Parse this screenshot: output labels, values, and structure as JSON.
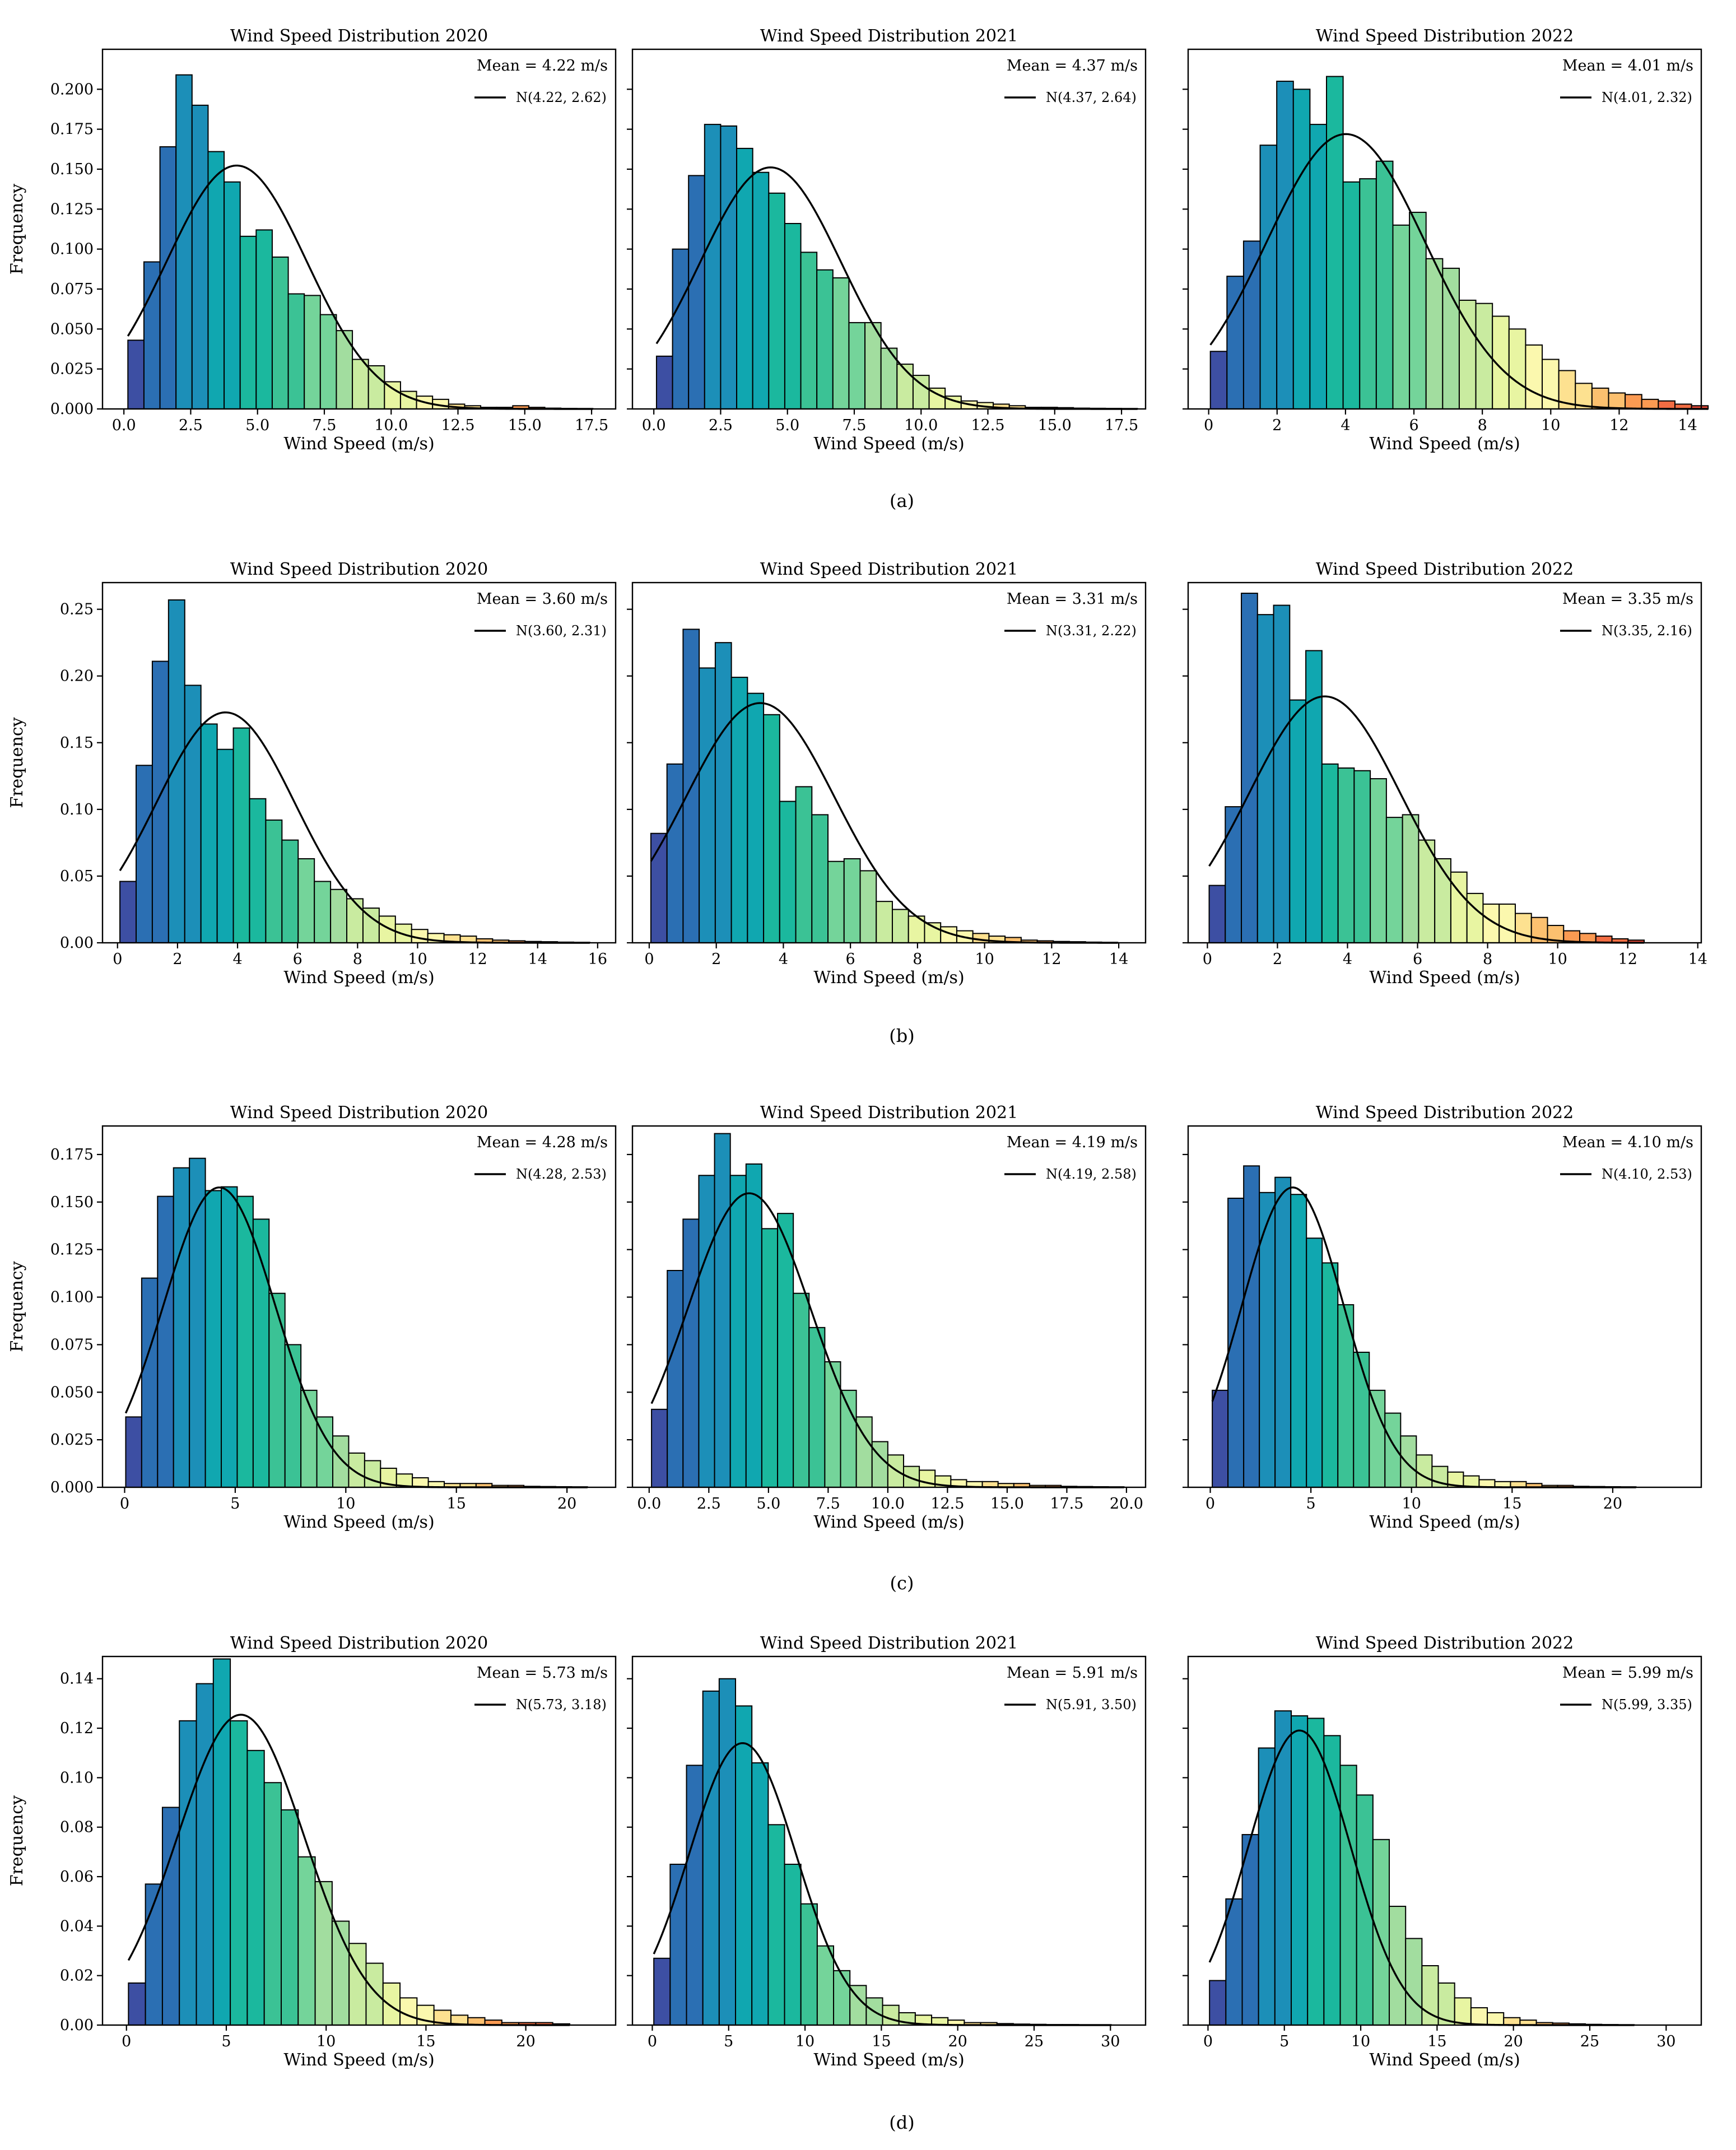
{
  "caption_labels": [
    "(a)",
    "(b)",
    "(c)",
    "(d)"
  ],
  "colors": {
    "colormap": "Spectral_r",
    "palette": [
      "#3d4fa3",
      "#2b6fb3",
      "#1c8fb8",
      "#10a7b0",
      "#1bb89e",
      "#3bc295",
      "#74d49a",
      "#a2dd9f",
      "#c9eba0",
      "#e8f5a2",
      "#fbf8ae",
      "#fde190",
      "#fcc06f",
      "#fa9a52",
      "#f26d43",
      "#e24a38"
    ],
    "line": "#000000"
  },
  "chart_data": [
    {
      "type": "bar",
      "row": 0,
      "col": 0,
      "title": "Wind Speed Distribution 2020",
      "xlabel": "Wind Speed (m/s)",
      "ylabel": "Frequency",
      "mean_label": "Mean = 4.22 m/s",
      "legend_label": "N(4.22, 2.62)",
      "mean": 4.22,
      "std": 2.62,
      "xlim": [
        -0.8,
        18.4
      ],
      "ylim": [
        0,
        0.225
      ],
      "xticks": [
        0.0,
        2.5,
        5.0,
        7.5,
        10.0,
        12.5,
        15.0,
        17.5
      ],
      "xtick_labels": [
        "0.0",
        "2.5",
        "5.0",
        "7.5",
        "10.0",
        "12.5",
        "15.0",
        "17.5"
      ],
      "yticks": [
        0.0,
        0.025,
        0.05,
        0.075,
        0.1,
        0.125,
        0.15,
        0.175,
        0.2
      ],
      "ytick_labels": [
        "0.000",
        "0.025",
        "0.050",
        "0.075",
        "0.100",
        "0.125",
        "0.150",
        "0.175",
        "0.200"
      ],
      "bin_start": 0.15,
      "bin_width": 0.6,
      "values": [
        0.043,
        0.092,
        0.164,
        0.209,
        0.19,
        0.161,
        0.142,
        0.108,
        0.112,
        0.095,
        0.072,
        0.071,
        0.059,
        0.049,
        0.031,
        0.027,
        0.017,
        0.011,
        0.008,
        0.006,
        0.003,
        0.002,
        0.001,
        0.001,
        0.002,
        0.001,
        0.0005,
        0.0003,
        0.0002
      ]
    },
    {
      "type": "bar",
      "row": 0,
      "col": 1,
      "title": "Wind Speed Distribution 2021",
      "xlabel": "Wind Speed (m/s)",
      "ylabel": "",
      "mean_label": "Mean = 4.37 m/s",
      "legend_label": "N(4.37, 2.64)",
      "mean": 4.37,
      "std": 2.64,
      "xlim": [
        -0.8,
        18.4
      ],
      "ylim": [
        0,
        0.225
      ],
      "xticks": [
        0.0,
        2.5,
        5.0,
        7.5,
        10.0,
        12.5,
        15.0,
        17.5
      ],
      "xtick_labels": [
        "0.0",
        "2.5",
        "5.0",
        "7.5",
        "10.0",
        "12.5",
        "15.0",
        "17.5"
      ],
      "yticks": [
        0.0,
        0.025,
        0.05,
        0.075,
        0.1,
        0.125,
        0.15,
        0.175,
        0.2
      ],
      "ytick_labels": [],
      "bin_start": 0.1,
      "bin_width": 0.6,
      "values": [
        0.033,
        0.1,
        0.146,
        0.178,
        0.177,
        0.163,
        0.148,
        0.135,
        0.116,
        0.098,
        0.087,
        0.082,
        0.054,
        0.054,
        0.038,
        0.028,
        0.021,
        0.013,
        0.008,
        0.005,
        0.004,
        0.003,
        0.002,
        0.001,
        0.001,
        0.0008,
        0.0005,
        0.0004,
        0.0003,
        0.0002
      ]
    },
    {
      "type": "bar",
      "row": 0,
      "col": 2,
      "title": "Wind Speed Distribution 2022",
      "xlabel": "Wind Speed (m/s)",
      "ylabel": "",
      "mean_label": "Mean = 4.01 m/s",
      "legend_label": "N(4.01, 2.32)",
      "mean": 4.01,
      "std": 2.32,
      "xlim": [
        -0.6,
        14.4
      ],
      "ylim": [
        0,
        0.225
      ],
      "xticks": [
        0,
        2,
        4,
        6,
        8,
        10,
        12,
        14
      ],
      "xtick_labels": [
        "0",
        "2",
        "4",
        "6",
        "8",
        "10",
        "12",
        "14"
      ],
      "yticks": [
        0.0,
        0.025,
        0.05,
        0.075,
        0.1,
        0.125,
        0.15,
        0.175,
        0.2
      ],
      "ytick_labels": [],
      "bin_start": 0.05,
      "bin_width": 0.485,
      "values": [
        0.036,
        0.083,
        0.105,
        0.165,
        0.205,
        0.2,
        0.178,
        0.208,
        0.142,
        0.144,
        0.155,
        0.115,
        0.123,
        0.094,
        0.088,
        0.068,
        0.066,
        0.058,
        0.05,
        0.04,
        0.031,
        0.024,
        0.016,
        0.013,
        0.01,
        0.009,
        0.006,
        0.005,
        0.003,
        0.002
      ]
    },
    {
      "type": "bar",
      "row": 1,
      "col": 0,
      "title": "Wind Speed Distribution 2020",
      "xlabel": "Wind Speed (m/s)",
      "ylabel": "Frequency",
      "mean_label": "Mean = 3.60 m/s",
      "legend_label": "N(3.60, 2.31)",
      "mean": 3.6,
      "std": 2.31,
      "xlim": [
        -0.5,
        16.6
      ],
      "ylim": [
        0,
        0.27
      ],
      "xticks": [
        0,
        2,
        4,
        6,
        8,
        10,
        12,
        14,
        16
      ],
      "xtick_labels": [
        "0",
        "2",
        "4",
        "6",
        "8",
        "10",
        "12",
        "14",
        "16"
      ],
      "yticks": [
        0.0,
        0.05,
        0.1,
        0.15,
        0.2,
        0.25
      ],
      "ytick_labels": [
        "0.00",
        "0.05",
        "0.10",
        "0.15",
        "0.20",
        "0.25"
      ],
      "bin_start": 0.08,
      "bin_width": 0.54,
      "values": [
        0.046,
        0.133,
        0.211,
        0.257,
        0.193,
        0.164,
        0.145,
        0.161,
        0.108,
        0.092,
        0.077,
        0.063,
        0.046,
        0.04,
        0.033,
        0.026,
        0.02,
        0.014,
        0.01,
        0.007,
        0.006,
        0.005,
        0.003,
        0.002,
        0.0015,
        0.001,
        0.0008,
        0.0005,
        0.0003
      ]
    },
    {
      "type": "bar",
      "row": 1,
      "col": 1,
      "title": "Wind Speed Distribution 2021",
      "xlabel": "Wind Speed (m/s)",
      "ylabel": "",
      "mean_label": "Mean = 3.31 m/s",
      "legend_label": "N(3.31, 2.22)",
      "mean": 3.31,
      "std": 2.22,
      "xlim": [
        -0.5,
        14.8
      ],
      "ylim": [
        0,
        0.27
      ],
      "xticks": [
        0,
        2,
        4,
        6,
        8,
        10,
        12,
        14
      ],
      "xtick_labels": [
        "0",
        "2",
        "4",
        "6",
        "8",
        "10",
        "12",
        "14"
      ],
      "yticks": [
        0.0,
        0.05,
        0.1,
        0.15,
        0.2,
        0.25
      ],
      "ytick_labels": [],
      "bin_start": 0.05,
      "bin_width": 0.48,
      "values": [
        0.082,
        0.134,
        0.235,
        0.206,
        0.225,
        0.199,
        0.187,
        0.171,
        0.106,
        0.117,
        0.096,
        0.061,
        0.063,
        0.054,
        0.031,
        0.025,
        0.02,
        0.015,
        0.012,
        0.009,
        0.007,
        0.005,
        0.004,
        0.002,
        0.0015,
        0.001,
        0.0008,
        0.0005,
        0.0003
      ]
    },
    {
      "type": "bar",
      "row": 1,
      "col": 2,
      "title": "Wind Speed Distribution 2022",
      "xlabel": "Wind Speed (m/s)",
      "ylabel": "",
      "mean_label": "Mean = 3.35 m/s",
      "legend_label": "N(3.35, 2.16)",
      "mean": 3.35,
      "std": 2.16,
      "xlim": [
        -0.55,
        14.1
      ],
      "ylim": [
        0,
        0.27
      ],
      "xticks": [
        0,
        2,
        4,
        6,
        8,
        10,
        12,
        14
      ],
      "xtick_labels": [
        "0",
        "2",
        "4",
        "6",
        "8",
        "10",
        "12",
        "14"
      ],
      "yticks": [
        0.0,
        0.05,
        0.1,
        0.15,
        0.2,
        0.25
      ],
      "ytick_labels": [],
      "bin_start": 0.05,
      "bin_width": 0.46,
      "values": [
        0.043,
        0.102,
        0.262,
        0.246,
        0.253,
        0.182,
        0.219,
        0.134,
        0.131,
        0.129,
        0.123,
        0.094,
        0.096,
        0.077,
        0.063,
        0.053,
        0.037,
        0.029,
        0.029,
        0.022,
        0.019,
        0.013,
        0.009,
        0.007,
        0.005,
        0.003,
        0.002
      ]
    },
    {
      "type": "bar",
      "row": 2,
      "col": 0,
      "title": "Wind Speed Distribution 2020",
      "xlabel": "Wind Speed (m/s)",
      "ylabel": "Frequency",
      "mean_label": "Mean = 4.28 m/s",
      "legend_label": "N(4.28, 2.53)",
      "mean": 4.28,
      "std": 2.53,
      "xlim": [
        -1.0,
        22.2
      ],
      "ylim": [
        0,
        0.19
      ],
      "xticks": [
        0,
        5,
        10,
        15,
        20
      ],
      "xtick_labels": [
        "0",
        "5",
        "10",
        "15",
        "20"
      ],
      "yticks": [
        0.0,
        0.025,
        0.05,
        0.075,
        0.1,
        0.125,
        0.15,
        0.175
      ],
      "ytick_labels": [
        "0.000",
        "0.025",
        "0.050",
        "0.075",
        "0.100",
        "0.125",
        "0.150",
        "0.175"
      ],
      "bin_start": 0.05,
      "bin_width": 0.72,
      "values": [
        0.037,
        0.11,
        0.153,
        0.168,
        0.173,
        0.156,
        0.158,
        0.153,
        0.141,
        0.102,
        0.075,
        0.051,
        0.037,
        0.027,
        0.018,
        0.014,
        0.01,
        0.007,
        0.005,
        0.003,
        0.002,
        0.002,
        0.002,
        0.001,
        0.001,
        0.0005,
        0.0004,
        0.0003,
        0.0002
      ]
    },
    {
      "type": "bar",
      "row": 2,
      "col": 1,
      "title": "Wind Speed Distribution 2021",
      "xlabel": "Wind Speed (m/s)",
      "ylabel": "",
      "mean_label": "Mean = 4.19 m/s",
      "legend_label": "N(4.19, 2.58)",
      "mean": 4.19,
      "std": 2.58,
      "xlim": [
        -0.7,
        20.8
      ],
      "ylim": [
        0,
        0.19
      ],
      "xticks": [
        0.0,
        2.5,
        5.0,
        7.5,
        10.0,
        12.5,
        15.0,
        17.5,
        20.0
      ],
      "xtick_labels": [
        "0.0",
        "2.5",
        "5.0",
        "7.5",
        "10.0",
        "12.5",
        "15.0",
        "17.5",
        "20.0"
      ],
      "yticks": [
        0.0,
        0.025,
        0.05,
        0.075,
        0.1,
        0.125,
        0.15,
        0.175
      ],
      "ytick_labels": [],
      "bin_start": 0.1,
      "bin_width": 0.66,
      "values": [
        0.041,
        0.114,
        0.141,
        0.164,
        0.186,
        0.164,
        0.17,
        0.136,
        0.144,
        0.102,
        0.084,
        0.066,
        0.051,
        0.037,
        0.024,
        0.017,
        0.011,
        0.009,
        0.006,
        0.004,
        0.003,
        0.003,
        0.002,
        0.002,
        0.001,
        0.001,
        0.0005,
        0.0004,
        0.0003,
        0.0002
      ]
    },
    {
      "type": "bar",
      "row": 2,
      "col": 2,
      "title": "Wind Speed Distribution 2022",
      "xlabel": "Wind Speed (m/s)",
      "ylabel": "",
      "mean_label": "Mean = 4.10 m/s",
      "legend_label": "N(4.10, 2.53)",
      "mean": 4.1,
      "std": 2.53,
      "xlim": [
        -1.1,
        24.4
      ],
      "ylim": [
        0,
        0.19
      ],
      "xticks": [
        0,
        5,
        10,
        15,
        20
      ],
      "xtick_labels": [
        "0",
        "5",
        "10",
        "15",
        "20"
      ],
      "yticks": [
        0.0,
        0.025,
        0.05,
        0.075,
        0.1,
        0.125,
        0.15,
        0.175
      ],
      "ytick_labels": [],
      "bin_start": 0.1,
      "bin_width": 0.78,
      "values": [
        0.051,
        0.152,
        0.169,
        0.155,
        0.163,
        0.154,
        0.131,
        0.118,
        0.096,
        0.071,
        0.051,
        0.039,
        0.027,
        0.017,
        0.011,
        0.008,
        0.006,
        0.004,
        0.003,
        0.003,
        0.002,
        0.001,
        0.001,
        0.0005,
        0.0004,
        0.0003,
        0.0002
      ]
    },
    {
      "type": "bar",
      "row": 3,
      "col": 0,
      "title": "Wind Speed Distribution 2020",
      "xlabel": "Wind Speed (m/s)",
      "ylabel": "Frequency",
      "mean_label": "Mean = 5.73 m/s",
      "legend_label": "N(5.73, 3.18)",
      "mean": 5.73,
      "std": 3.18,
      "xlim": [
        -1.2,
        24.5
      ],
      "ylim": [
        0,
        0.149
      ],
      "xticks": [
        0,
        5,
        10,
        15,
        20
      ],
      "xtick_labels": [
        "0",
        "5",
        "10",
        "15",
        "20"
      ],
      "yticks": [
        0.0,
        0.02,
        0.04,
        0.06,
        0.08,
        0.1,
        0.12,
        0.14
      ],
      "ytick_labels": [
        "0.00",
        "0.02",
        "0.04",
        "0.06",
        "0.08",
        "0.10",
        "0.12",
        "0.14"
      ],
      "bin_start": 0.1,
      "bin_width": 0.85,
      "values": [
        0.017,
        0.057,
        0.088,
        0.123,
        0.138,
        0.148,
        0.123,
        0.111,
        0.098,
        0.087,
        0.068,
        0.058,
        0.042,
        0.033,
        0.025,
        0.017,
        0.011,
        0.008,
        0.006,
        0.004,
        0.003,
        0.002,
        0.001,
        0.001,
        0.001,
        0.0005
      ]
    },
    {
      "type": "bar",
      "row": 3,
      "col": 1,
      "title": "Wind Speed Distribution 2021",
      "xlabel": "Wind Speed (m/s)",
      "ylabel": "",
      "mean_label": "Mean = 5.91 m/s",
      "legend_label": "N(5.91, 3.50)",
      "mean": 5.91,
      "std": 3.5,
      "xlim": [
        -1.3,
        32.3
      ],
      "ylim": [
        0,
        0.149
      ],
      "xticks": [
        0,
        5,
        10,
        15,
        20,
        25,
        30
      ],
      "xtick_labels": [
        "0",
        "5",
        "10",
        "15",
        "20",
        "25",
        "30"
      ],
      "yticks": [
        0.0,
        0.02,
        0.04,
        0.06,
        0.08,
        0.1,
        0.12,
        0.14
      ],
      "ytick_labels": [],
      "bin_start": 0.1,
      "bin_width": 1.07,
      "values": [
        0.027,
        0.065,
        0.105,
        0.135,
        0.14,
        0.129,
        0.106,
        0.081,
        0.065,
        0.049,
        0.032,
        0.022,
        0.016,
        0.011,
        0.008,
        0.005,
        0.004,
        0.003,
        0.002,
        0.001,
        0.001,
        0.0006,
        0.0004,
        0.0003,
        0.0002,
        0.0002,
        0.0001,
        0.0001
      ]
    },
    {
      "type": "bar",
      "row": 3,
      "col": 2,
      "title": "Wind Speed Distribution 2022",
      "xlabel": "Wind Speed (m/s)",
      "ylabel": "",
      "mean_label": "Mean = 5.99 m/s",
      "legend_label": "N(5.99, 3.35)",
      "mean": 5.99,
      "std": 3.35,
      "xlim": [
        -1.3,
        32.3
      ],
      "ylim": [
        0,
        0.149
      ],
      "xticks": [
        0,
        5,
        10,
        15,
        20,
        25,
        30
      ],
      "xtick_labels": [
        "0",
        "5",
        "10",
        "15",
        "20",
        "25",
        "30"
      ],
      "yticks": [
        0.0,
        0.02,
        0.04,
        0.06,
        0.08,
        0.1,
        0.12,
        0.14
      ],
      "ytick_labels": [],
      "bin_start": 0.1,
      "bin_width": 1.07,
      "values": [
        0.018,
        0.051,
        0.077,
        0.112,
        0.127,
        0.125,
        0.124,
        0.117,
        0.105,
        0.093,
        0.075,
        0.048,
        0.035,
        0.024,
        0.017,
        0.011,
        0.007,
        0.005,
        0.003,
        0.002,
        0.001,
        0.0008,
        0.0005,
        0.0003,
        0.0002,
        0.0001
      ]
    }
  ]
}
